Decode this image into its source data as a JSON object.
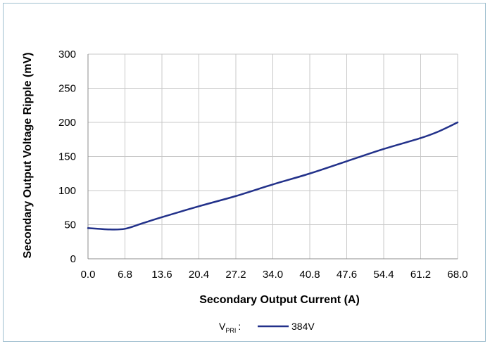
{
  "chart_data": {
    "type": "line",
    "xlabel": "Secondary Output Current (A)",
    "ylabel": "Secondary Output Voltage Ripple (mV)",
    "xlim": [
      0,
      68
    ],
    "ylim": [
      0,
      300
    ],
    "x_ticks": [
      "0.0",
      "6.8",
      "13.6",
      "20.4",
      "27.2",
      "34.0",
      "40.8",
      "47.6",
      "54.4",
      "61.2",
      "68.0"
    ],
    "y_ticks": [
      "0",
      "50",
      "100",
      "150",
      "200",
      "250",
      "300"
    ],
    "grid": true,
    "legend": {
      "position": "bottom-center",
      "prefix_main": "V",
      "prefix_sub": "PRI",
      "separator": ":"
    },
    "series": [
      {
        "name": "384V",
        "color": "#22318a",
        "x": [
          0,
          2,
          4,
          6.8,
          10,
          13.6,
          20.4,
          27.2,
          34.0,
          40.8,
          47.6,
          54.4,
          61.2,
          64.6,
          68.0
        ],
        "y": [
          45,
          44,
          43,
          44,
          52,
          61,
          77,
          92,
          109,
          125,
          143,
          161,
          177,
          187,
          200
        ]
      }
    ]
  }
}
